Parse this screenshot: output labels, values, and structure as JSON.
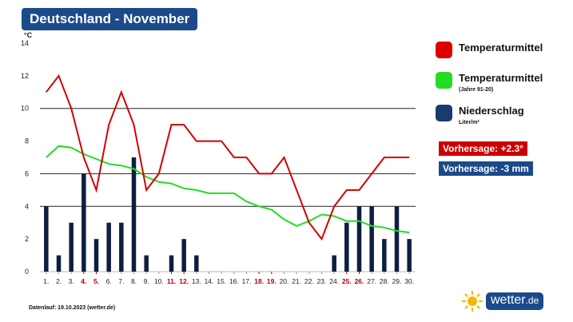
{
  "header": {
    "title": "Deutschland - November"
  },
  "chart_data": {
    "type": "bar",
    "title": "Deutschland - November",
    "ylabel": "°C",
    "ylim": [
      0,
      14
    ],
    "yticks": [
      0,
      2,
      4,
      6,
      8,
      10,
      12,
      14
    ],
    "gridlines": [
      10,
      6,
      4
    ],
    "categories": [
      "1.",
      "2.",
      "3.",
      "4.",
      "5.",
      "6.",
      "7.",
      "8.",
      "9.",
      "10.",
      "11.",
      "12.",
      "13.",
      "14.",
      "15.",
      "16.",
      "17.",
      "18.",
      "19.",
      "20.",
      "21.",
      "22.",
      "23.",
      "24.",
      "25.",
      "26.",
      "27.",
      "28.",
      "29.",
      "30."
    ],
    "highlight_days": [
      4,
      5,
      11,
      12,
      18,
      19,
      25,
      26
    ],
    "series": [
      {
        "name": "Temperaturmittel",
        "type": "line",
        "color": "#d40000",
        "values": [
          11,
          12,
          10,
          7,
          5,
          9,
          11,
          9,
          5,
          6,
          9,
          9,
          8,
          8,
          8,
          7,
          7,
          6,
          6,
          7,
          5,
          3,
          2,
          4,
          5,
          5,
          6,
          7,
          7,
          7
        ]
      },
      {
        "name": "Temperaturmittel (Jahre 91-20)",
        "type": "line",
        "color": "#22dd22",
        "values": [
          7.0,
          7.7,
          7.6,
          7.2,
          6.9,
          6.6,
          6.5,
          6.3,
          5.8,
          5.5,
          5.4,
          5.1,
          5.0,
          4.8,
          4.8,
          4.8,
          4.3,
          4.0,
          3.8,
          3.2,
          2.8,
          3.1,
          3.5,
          3.4,
          3.1,
          3.1,
          2.8,
          2.7,
          2.5,
          2.4
        ]
      },
      {
        "name": "Niederschlag",
        "type": "bar",
        "unit": "Liter/m²",
        "color": "#0d1e40",
        "values": [
          4,
          1,
          3,
          6,
          2,
          3,
          3,
          7,
          1,
          0,
          1,
          2,
          1,
          0,
          0,
          0,
          0,
          0,
          0,
          0,
          0,
          0,
          0,
          1,
          3,
          4,
          4,
          2,
          4,
          2
        ]
      }
    ]
  },
  "legend": {
    "items": [
      {
        "label": "Temperaturmittel",
        "sub": "",
        "color": "#dd0000"
      },
      {
        "label": "Temperaturmittel",
        "sub": "(Jahre 91-20)",
        "color": "#22dd22"
      },
      {
        "label": "Niederschlag",
        "sub": "Liter/m²",
        "color": "#1b3a6e"
      }
    ]
  },
  "forecast": {
    "temp": {
      "label": "Vorhersage: +2.3°",
      "color": "#cc0000"
    },
    "rain": {
      "label": "Vorhersage: -3 mm",
      "color": "#1b4a8a"
    }
  },
  "footer": {
    "text": "Datenlauf: 19.10.2023 (wetter.de)"
  },
  "brand": {
    "name": "wetter",
    "suffix": ".de"
  }
}
